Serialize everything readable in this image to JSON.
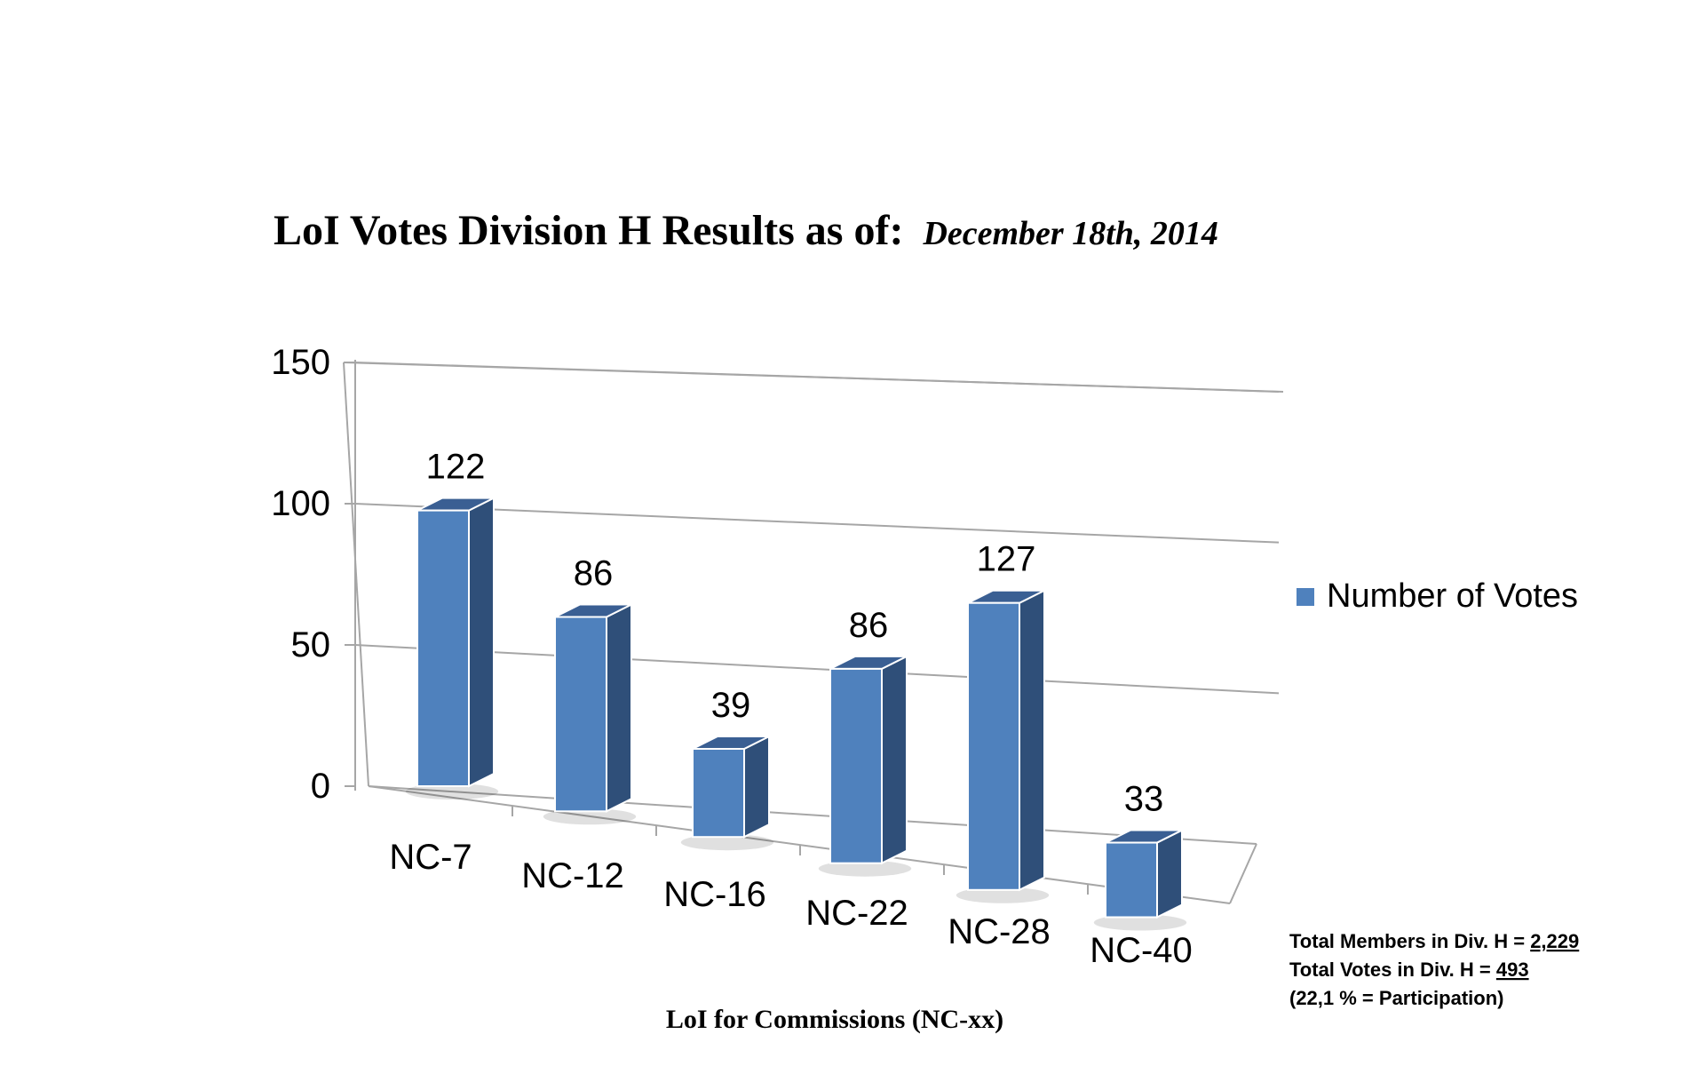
{
  "chart_data": {
    "type": "bar",
    "title": "LoI Votes Division H Results as of:",
    "subtitle": "December 18th, 2014",
    "categories": [
      "NC-7",
      "NC-12",
      "NC-16",
      "NC-22",
      "NC-28",
      "NC-40"
    ],
    "series": [
      {
        "name": "Number of Votes",
        "values": [
          122,
          86,
          39,
          86,
          127,
          33
        ]
      }
    ],
    "data_labels": [
      "122",
      "86",
      "39",
      "86",
      "127",
      "33"
    ],
    "yticks": [
      "0",
      "50",
      "100",
      "150"
    ],
    "ylim": [
      0,
      150
    ],
    "xlabel": "LoI for Commissions (NC-xx)",
    "ylabel": "",
    "grid": true,
    "legend_position": "right",
    "bar_color": "#4f81bd",
    "bar_side_color": "#2f4f79",
    "bar_top_color": "#3a5f93"
  },
  "notes": {
    "members_text": "Total Members in Div. H = ",
    "members_value": "2,229",
    "votes_text": "Total Votes in Div. H = ",
    "votes_value": "493",
    "participation": "(22,1 % = Participation)"
  }
}
